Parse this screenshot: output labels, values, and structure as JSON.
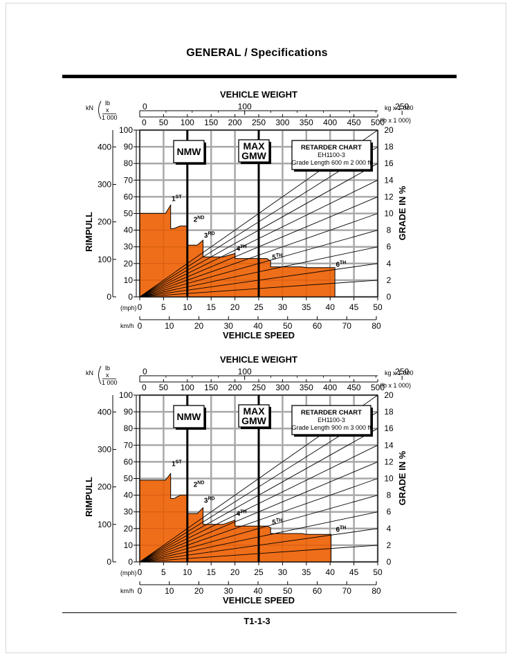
{
  "page": {
    "title": "GENERAL / Specifications",
    "footer": "T1-1-3"
  },
  "chart_data": [
    {
      "type": "area",
      "title": "RETARDER CHART",
      "model": "EH1100-3",
      "grade_length": "Grade Length 600 m 2 000 ft",
      "weight_axis_title": "VEHICLE WEIGHT",
      "weight_kg_unit": "kg x 1 000",
      "weight_lb_unit": "(lb  x 1 000)",
      "weight_kg_ticks": [
        "0",
        "100",
        "250"
      ],
      "weight_lb_ticks": [
        "0",
        "50",
        "100",
        "150",
        "200",
        "250",
        "300",
        "350",
        "400",
        "450",
        "500"
      ],
      "xlabel": "VEHICLE SPEED",
      "speed_mph_unit": "(mph)",
      "speed_kmh_unit": "km/h",
      "mph_ticks": [
        "0",
        "5",
        "10",
        "15",
        "20",
        "25",
        "30",
        "35",
        "40",
        "45",
        "50"
      ],
      "kmh_ticks": [
        "0",
        "10",
        "20",
        "30",
        "40",
        "50",
        "60",
        "70",
        "80"
      ],
      "ylabel": "RIMPULL",
      "kn_unit": "kN",
      "lb_unit": "lb",
      "lb_mult": "x",
      "lb_div": "1 000",
      "kn_ticks": [
        "0",
        "100",
        "200",
        "300",
        "400"
      ],
      "lb_ticks": [
        "0",
        "10",
        "20",
        "30",
        "40",
        "50",
        "60",
        "70",
        "80",
        "90",
        "100"
      ],
      "y2label": "GRADE IN %",
      "grade_ticks": [
        "0",
        "2",
        "4",
        "6",
        "8",
        "10",
        "12",
        "14",
        "16",
        "18",
        "20"
      ],
      "xlim_mph": [
        0,
        50
      ],
      "ylim_lb_x1000": [
        0,
        100
      ],
      "grid": true,
      "nmw_label": "NMW",
      "max_gmw_label": [
        "MAX",
        "GMW"
      ],
      "nmw_lb_x1000": 100,
      "max_gmw_lb_x1000": 250,
      "gears": [
        {
          "name": "1",
          "suffix": "ST"
        },
        {
          "name": "2",
          "suffix": "ND"
        },
        {
          "name": "3",
          "suffix": "RD"
        },
        {
          "name": "4",
          "suffix": "TH"
        },
        {
          "name": "5",
          "suffix": "TH"
        },
        {
          "name": "6",
          "suffix": "TH"
        }
      ],
      "retard_envelope": [
        [
          0,
          50
        ],
        [
          5.4,
          50
        ],
        [
          6.5,
          55
        ],
        [
          6.5,
          41
        ],
        [
          7.2,
          41
        ],
        [
          8.5,
          42.5
        ],
        [
          10,
          42.5
        ],
        [
          10,
          31
        ],
        [
          12.1,
          31
        ],
        [
          13.3,
          34
        ],
        [
          13.3,
          24
        ],
        [
          17.5,
          24
        ],
        [
          20,
          26
        ],
        [
          20,
          23
        ],
        [
          26.7,
          23
        ],
        [
          27.5,
          21.5
        ],
        [
          27.5,
          18
        ],
        [
          34,
          18
        ],
        [
          35,
          17.5
        ],
        [
          41,
          17.5
        ],
        [
          41,
          0
        ]
      ]
    },
    {
      "type": "area",
      "title": "RETARDER CHART",
      "model": "EH1100-3",
      "grade_length": "Grade Length 900 m 3 000 ft",
      "weight_axis_title": "VEHICLE WEIGHT",
      "weight_kg_unit": "kg x 1 000",
      "weight_lb_unit": "(lb  x 1 000)",
      "weight_kg_ticks": [
        "0",
        "100",
        "250"
      ],
      "weight_lb_ticks": [
        "0",
        "50",
        "100",
        "150",
        "200",
        "250",
        "300",
        "350",
        "400",
        "450",
        "500"
      ],
      "xlabel": "VEHICLE SPEED",
      "speed_mph_unit": "(mph)",
      "speed_kmh_unit": "km/h",
      "mph_ticks": [
        "0",
        "5",
        "10",
        "15",
        "20",
        "25",
        "30",
        "35",
        "40",
        "45",
        "50"
      ],
      "kmh_ticks": [
        "0",
        "10",
        "20",
        "30",
        "40",
        "50",
        "60",
        "70",
        "80"
      ],
      "ylabel": "RIMPULL",
      "kn_unit": "kN",
      "lb_unit": "lb",
      "lb_mult": "x",
      "lb_div": "1 000",
      "kn_ticks": [
        "0",
        "100",
        "200",
        "300",
        "400"
      ],
      "lb_ticks": [
        "0",
        "10",
        "20",
        "30",
        "40",
        "50",
        "60",
        "70",
        "80",
        "90",
        "100"
      ],
      "y2label": "GRADE IN %",
      "grade_ticks": [
        "0",
        "2",
        "4",
        "6",
        "8",
        "10",
        "12",
        "14",
        "16",
        "18",
        "20"
      ],
      "xlim_mph": [
        0,
        50
      ],
      "ylim_lb_x1000": [
        0,
        100
      ],
      "grid": true,
      "nmw_label": "NMW",
      "max_gmw_label": [
        "MAX",
        "GMW"
      ],
      "nmw_lb_x1000": 100,
      "max_gmw_lb_x1000": 250,
      "gears": [
        {
          "name": "1",
          "suffix": "ST"
        },
        {
          "name": "2",
          "suffix": "ND"
        },
        {
          "name": "3",
          "suffix": "RD"
        },
        {
          "name": "4",
          "suffix": "TH"
        },
        {
          "name": "5",
          "suffix": "TH"
        },
        {
          "name": "6",
          "suffix": "TH"
        }
      ],
      "retard_envelope": [
        [
          0,
          49
        ],
        [
          5.4,
          49
        ],
        [
          6.5,
          53
        ],
        [
          6.5,
          38
        ],
        [
          7.2,
          38
        ],
        [
          8.5,
          40
        ],
        [
          10,
          40
        ],
        [
          10,
          29
        ],
        [
          12.1,
          29
        ],
        [
          13.3,
          32.5
        ],
        [
          13.3,
          22.5
        ],
        [
          17.5,
          22.5
        ],
        [
          20,
          25
        ],
        [
          20,
          21.5
        ],
        [
          26.7,
          21.5
        ],
        [
          27.5,
          20.5
        ],
        [
          27.5,
          17
        ],
        [
          34,
          17
        ],
        [
          35,
          16.5
        ],
        [
          40.2,
          16.5
        ],
        [
          40.2,
          0
        ]
      ]
    }
  ]
}
